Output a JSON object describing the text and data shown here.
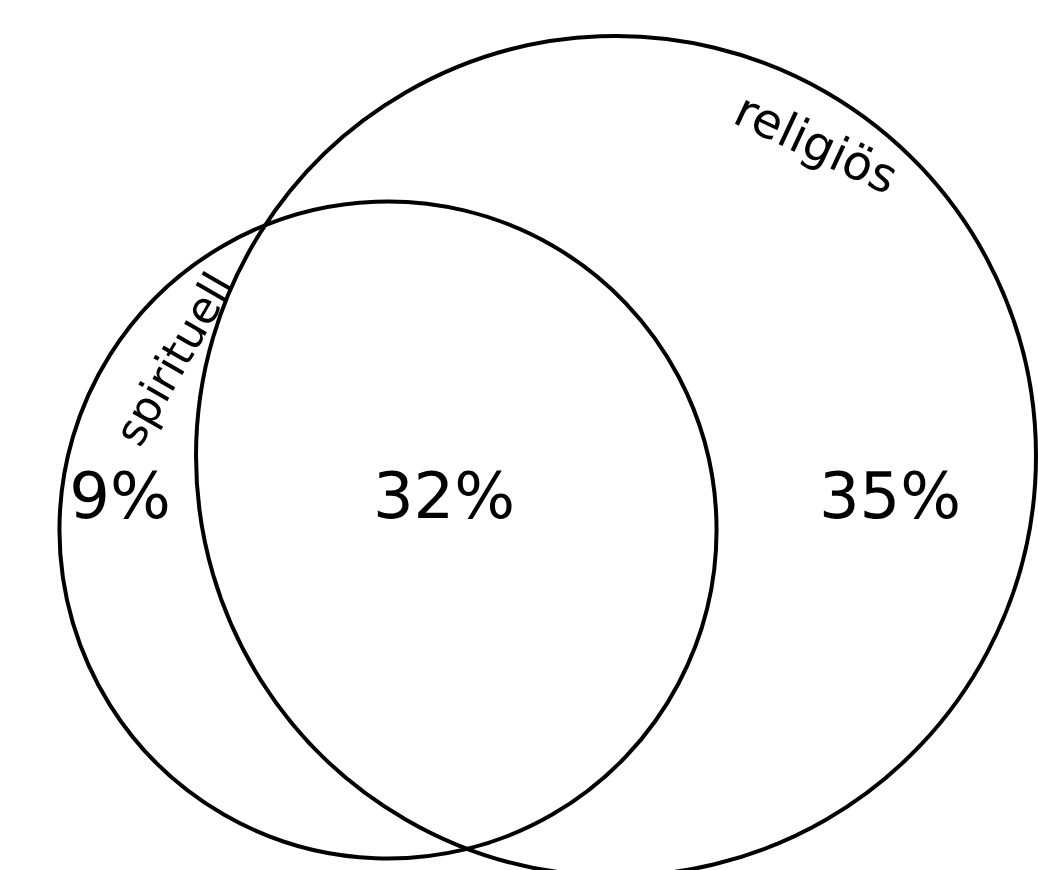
{
  "chart_data": {
    "type": "other",
    "annotations": [
      "spirituell",
      "religiös"
    ],
    "values": [
      9,
      32,
      35
    ],
    "value_labels": [
      "9%",
      "32%",
      "35%"
    ]
  }
}
